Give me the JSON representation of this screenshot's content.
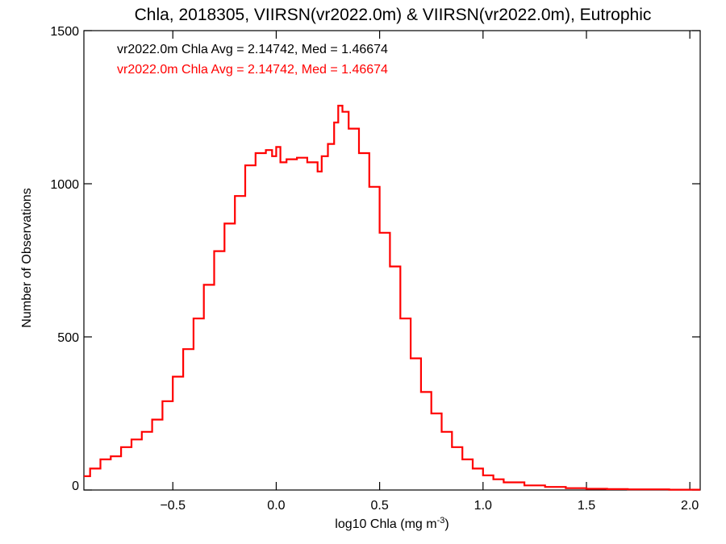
{
  "chart_data": {
    "type": "line",
    "title": "Chla, 2018305, VIIRSN(vr2022.0m) & VIIRSN(vr2022.0m), Eutrophic",
    "xlabel": "log10 Chla (mg m",
    "xlabel_sup": "-3",
    "xlabel_suffix": ")",
    "ylabel": "Number of Observations",
    "xlim": [
      -0.93,
      2.05
    ],
    "ylim": [
      0,
      1500
    ],
    "x_ticks": [
      -0.5,
      0.0,
      0.5,
      1.0,
      1.5,
      2.0
    ],
    "x_tick_labels": [
      "−0.5",
      "0.0",
      "0.5",
      "1.0",
      "1.5",
      "2.0"
    ],
    "y_ticks": [
      0,
      500,
      1000,
      1500
    ],
    "y_tick_labels": [
      "0",
      "500",
      "1000",
      "1500"
    ],
    "annotations": [
      {
        "text": "vr2022.0m Chla Avg = 2.14742, Med = 1.46674",
        "color": "#000000"
      },
      {
        "text": "vr2022.0m Chla Avg = 2.14742, Med = 1.46674",
        "color": "#ff0000"
      }
    ],
    "series": [
      {
        "color": "#ff0000",
        "x": [
          -0.93,
          -0.9,
          -0.85,
          -0.8,
          -0.75,
          -0.7,
          -0.65,
          -0.6,
          -0.55,
          -0.5,
          -0.45,
          -0.4,
          -0.35,
          -0.3,
          -0.25,
          -0.2,
          -0.15,
          -0.1,
          -0.05,
          -0.02,
          0.0,
          0.02,
          0.05,
          0.1,
          0.15,
          0.2,
          0.22,
          0.25,
          0.28,
          0.3,
          0.32,
          0.35,
          0.4,
          0.45,
          0.5,
          0.55,
          0.6,
          0.65,
          0.7,
          0.75,
          0.8,
          0.85,
          0.9,
          0.95,
          1.0,
          1.05,
          1.1,
          1.2,
          1.3,
          1.4,
          1.5,
          1.6,
          1.7,
          1.8,
          1.9,
          2.0,
          2.05
        ],
        "y": [
          45,
          70,
          100,
          110,
          140,
          165,
          190,
          230,
          290,
          370,
          460,
          560,
          670,
          780,
          870,
          960,
          1060,
          1100,
          1110,
          1090,
          1120,
          1070,
          1080,
          1085,
          1070,
          1040,
          1090,
          1130,
          1200,
          1255,
          1235,
          1180,
          1100,
          990,
          840,
          730,
          560,
          430,
          320,
          250,
          190,
          140,
          100,
          70,
          48,
          35,
          25,
          15,
          10,
          6,
          4,
          3,
          2,
          2,
          1,
          1,
          1
        ]
      }
    ]
  }
}
